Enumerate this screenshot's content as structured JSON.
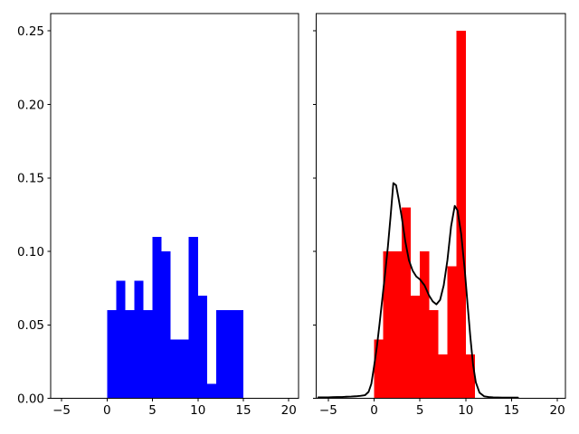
{
  "figure": {
    "background": "#ffffff"
  },
  "chart_data": [
    {
      "id": "left-histogram",
      "type": "bar",
      "subtype": "density-histogram",
      "title": "",
      "xlabel": "",
      "ylabel": "",
      "bar_color": "#0000ff",
      "bin_edges": [
        0,
        1,
        2,
        3,
        4,
        5,
        6,
        7,
        8,
        9,
        10,
        11,
        12,
        13,
        14,
        15
      ],
      "values": [
        0.06,
        0.08,
        0.06,
        0.08,
        0.06,
        0.11,
        0.1,
        0.04,
        0.04,
        0.11,
        0.07,
        0.01,
        0.06,
        0.06,
        0.06
      ],
      "xlim": [
        -6.2,
        21.07
      ],
      "ylim": [
        0,
        0.2618
      ],
      "xticks": [
        -5,
        0,
        5,
        10,
        15,
        20
      ],
      "xtick_labels": [
        "−5",
        "0",
        "5",
        "10",
        "15",
        "20"
      ],
      "yticks": [
        0.0,
        0.05,
        0.1,
        0.15,
        0.2,
        0.25
      ],
      "ytick_labels": [
        "0.00",
        "0.05",
        "0.10",
        "0.15",
        "0.20",
        "0.25"
      ],
      "show_ytick_labels": true,
      "grid": false,
      "legend": null
    },
    {
      "id": "right-histogram-kde",
      "type": "bar",
      "subtype": "density-histogram-with-kde",
      "title": "",
      "xlabel": "",
      "ylabel": "",
      "bar_color": "#ff0000",
      "bin_edges": [
        0,
        1,
        2,
        3,
        4,
        5,
        6,
        7,
        8,
        9,
        10,
        11
      ],
      "values": [
        0.04,
        0.1,
        0.1,
        0.13,
        0.07,
        0.1,
        0.06,
        0.03,
        0.09,
        0.25,
        0.03
      ],
      "xlim": [
        -6.34,
        20.88
      ],
      "ylim": [
        0,
        0.2618
      ],
      "xticks": [
        -5,
        0,
        5,
        10,
        15,
        20
      ],
      "xtick_labels": [
        "−5",
        "0",
        "5",
        "10",
        "15",
        "20"
      ],
      "yticks": [
        0.0,
        0.05,
        0.1,
        0.15,
        0.2,
        0.25
      ],
      "ytick_labels": [],
      "show_ytick_labels": false,
      "grid": false,
      "legend": null,
      "line": {
        "name": "kde-curve",
        "color": "#000000",
        "width": 1.9,
        "x": [
          -6.1,
          -5.5,
          -5,
          -4.5,
          -4,
          -3.5,
          -3,
          -2.5,
          -2,
          -1.5,
          -1.0,
          -0.6,
          -0.3,
          0,
          0.3,
          0.6,
          0.9,
          1.2,
          1.5,
          1.8,
          2.1,
          2.4,
          2.7,
          3.0,
          3.4,
          3.8,
          4.2,
          4.6,
          5.0,
          5.5,
          6.0,
          6.4,
          6.8,
          7.2,
          7.6,
          8.0,
          8.4,
          8.8,
          9.1,
          9.5,
          9.9,
          10.2,
          10.5,
          10.8,
          11.1,
          11.5,
          12.0,
          12.5,
          13.0,
          14.0,
          15.0,
          15.7
        ],
        "y": [
          0.0008,
          0.0008,
          0.0008,
          0.0009,
          0.001,
          0.001,
          0.0012,
          0.0013,
          0.0015,
          0.0018,
          0.0022,
          0.0045,
          0.01,
          0.022,
          0.035,
          0.051,
          0.068,
          0.085,
          0.103,
          0.124,
          0.1465,
          0.145,
          0.135,
          0.124,
          0.107,
          0.094,
          0.087,
          0.083,
          0.081,
          0.077,
          0.07,
          0.066,
          0.064,
          0.067,
          0.077,
          0.094,
          0.117,
          0.131,
          0.128,
          0.112,
          0.087,
          0.064,
          0.042,
          0.023,
          0.011,
          0.004,
          0.0015,
          0.001,
          0.0008,
          0.0006,
          0.0006,
          0.0006
        ]
      }
    }
  ]
}
